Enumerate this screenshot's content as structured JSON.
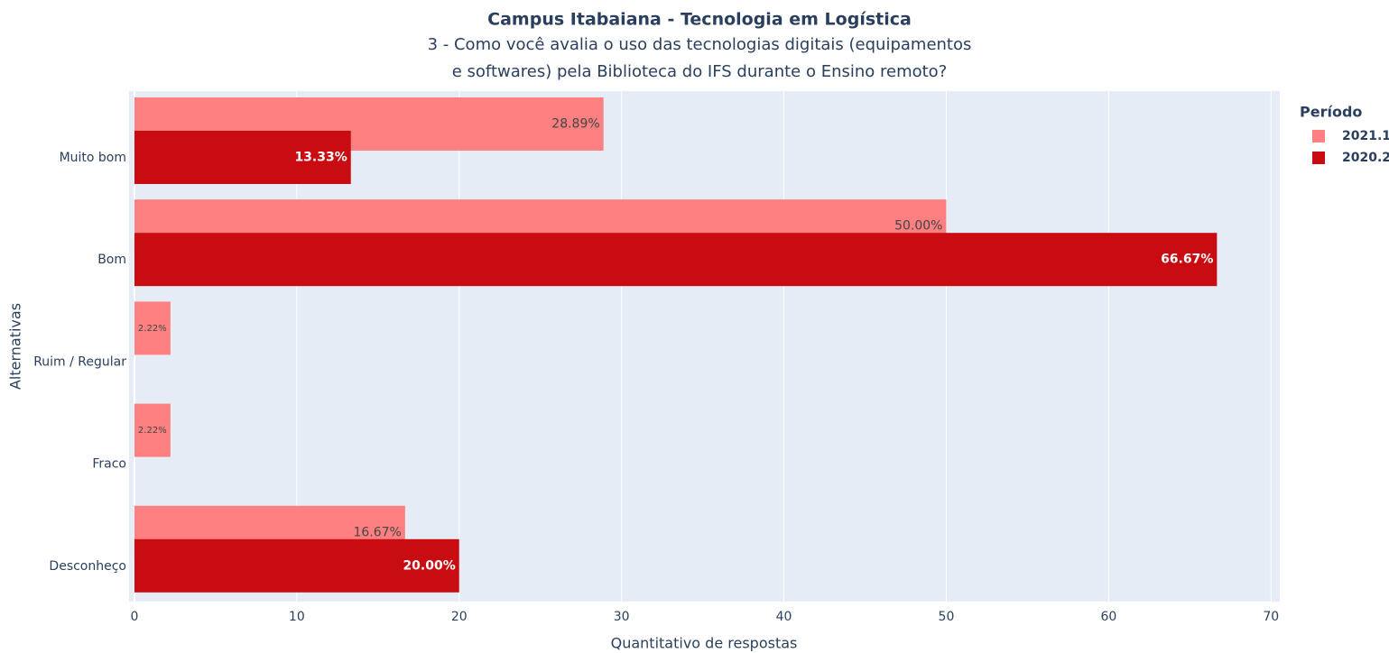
{
  "chart_data": {
    "type": "hbar",
    "title": "Campus Itabaiana - Tecnologia em Logística",
    "subtitle": [
      "3 - Como você avalia o uso das tecnologias digitais (equipamentos",
      "e softwares) pela Biblioteca do IFS durante o Ensino remoto?"
    ],
    "x_label": "Quantitativo de respostas",
    "y_label": "Alternativas",
    "categories": [
      "Muito bom",
      "Bom",
      "Ruim / Regular",
      "Fraco",
      "Desconheço"
    ],
    "legend_title": "Período",
    "series": [
      {
        "name": "2021.1",
        "color": "#ff8080",
        "values": [
          28.89,
          50.0,
          2.22,
          2.22,
          16.67
        ],
        "value_labels": [
          "28.89%",
          "50.00%",
          "2.22%",
          "2.22%",
          "16.67%"
        ]
      },
      {
        "name": "2020.2",
        "color": "#c90c11",
        "values": [
          13.33,
          66.67,
          null,
          null,
          20.0
        ],
        "value_labels": [
          "13.33%",
          "66.67%",
          null,
          null,
          "20.00%"
        ]
      }
    ],
    "xlim": [
      -0.33,
      70.54
    ],
    "xticks": [
      0,
      10,
      20,
      30,
      40,
      50,
      60,
      70
    ],
    "grid": true
  }
}
